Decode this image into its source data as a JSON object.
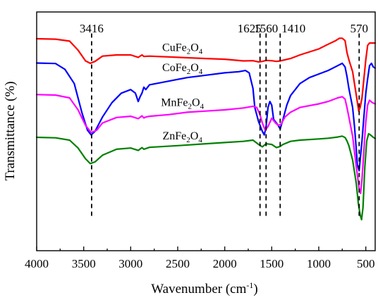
{
  "chart_data": {
    "type": "line",
    "title": "",
    "xlabel": "Wavenumber",
    "xlabel_unit": "cm",
    "xlabel_unit_exp": "-1",
    "ylabel": "Transmittance (%)",
    "xlim": [
      4000,
      400
    ],
    "x_reversed": true,
    "ylim": [
      0,
      100
    ],
    "x_ticks": [
      4000,
      3500,
      3000,
      2500,
      2000,
      1500,
      1000,
      500
    ],
    "x_tick_labels": [
      "4000",
      "3500",
      "3000",
      "2500",
      "2000",
      "1500",
      "1000",
      "500"
    ],
    "grid": false,
    "legend": "none (series labeled inline above each trace)",
    "peaks": [
      {
        "label": "3416",
        "x": 3416
      },
      {
        "label": "1625",
        "x": 1625
      },
      {
        "label": "1560",
        "x": 1560
      },
      {
        "label": "1410",
        "x": 1410
      },
      {
        "label": "570",
        "x": 570
      }
    ],
    "series": [
      {
        "name": "CuFe2O4",
        "color": "#ff0000",
        "label_base": "CuFe",
        "label_sub1": "2",
        "label_mid": "O",
        "label_sub2": "4",
        "x": [
          4000,
          3800,
          3650,
          3560,
          3480,
          3430,
          3380,
          3300,
          3150,
          3000,
          2920,
          2880,
          2860,
          2800,
          2500,
          2200,
          2000,
          1800,
          1700,
          1640,
          1600,
          1560,
          1500,
          1450,
          1410,
          1300,
          1200,
          1000,
          900,
          820,
          780,
          750,
          720,
          700,
          680,
          640,
          600,
          575,
          560,
          540,
          520,
          500,
          480,
          460,
          430,
          400
        ],
        "y": [
          88.8,
          88.6,
          87.8,
          84,
          79.5,
          78.5,
          79.3,
          81.5,
          82,
          82,
          81,
          82,
          81.4,
          81.5,
          81,
          80.5,
          80.2,
          79.5,
          79.6,
          79.1,
          79.3,
          79.7,
          79.6,
          79.3,
          79.5,
          80.5,
          82,
          84.5,
          86.5,
          88,
          89,
          89,
          88,
          83,
          80,
          75,
          65,
          58.5,
          60,
          64,
          72,
          80,
          86,
          87,
          87,
          87
        ]
      },
      {
        "name": "CoFe2O4",
        "color": "#0000ff",
        "label_base": "CoFe",
        "label_sub1": "2",
        "label_mid": "O",
        "label_sub2": "4",
        "x": [
          4000,
          3800,
          3700,
          3600,
          3520,
          3460,
          3420,
          3380,
          3300,
          3200,
          3100,
          3000,
          2950,
          2920,
          2900,
          2880,
          2860,
          2840,
          2800,
          2600,
          2400,
          2200,
          2000,
          1850,
          1780,
          1740,
          1700,
          1680,
          1640,
          1600,
          1580,
          1560,
          1540,
          1520,
          1500,
          1480,
          1440,
          1410,
          1380,
          1340,
          1300,
          1200,
          1100,
          1000,
          900,
          800,
          750,
          720,
          700,
          680,
          640,
          620,
          600,
          590,
          570,
          560,
          540,
          520,
          500,
          480,
          460,
          440,
          420,
          400
        ],
        "y": [
          78.6,
          78.4,
          76,
          70,
          58,
          50.5,
          48.5,
          50,
          56,
          62,
          66,
          67.5,
          66,
          62.5,
          64.5,
          66,
          68.5,
          67.5,
          69.5,
          71,
          72.5,
          73.5,
          74.5,
          75,
          75.5,
          74.5,
          68,
          60,
          54,
          50,
          48.5,
          52,
          60,
          62.5,
          61,
          55,
          53,
          51,
          55,
          61,
          65,
          70,
          72.5,
          74,
          75.5,
          77.5,
          78.5,
          77,
          73,
          68,
          60,
          52,
          42,
          36,
          33.5,
          38,
          46,
          56,
          66,
          72,
          77.5,
          78.5,
          77,
          76.5
        ]
      },
      {
        "name": "MnFe2O4",
        "color": "#ff00ff",
        "label_base": "MnFe",
        "label_sub1": "2",
        "label_mid": "O",
        "label_sub2": "4",
        "x": [
          4000,
          3800,
          3650,
          3560,
          3480,
          3420,
          3360,
          3300,
          3150,
          3000,
          2920,
          2880,
          2860,
          2840,
          2800,
          2600,
          2400,
          2200,
          2000,
          1800,
          1700,
          1660,
          1625,
          1600,
          1570,
          1540,
          1500,
          1460,
          1430,
          1400,
          1360,
          1300,
          1200,
          1000,
          900,
          800,
          750,
          720,
          700,
          680,
          640,
          600,
          570,
          555,
          540,
          520,
          500,
          480,
          460,
          430,
          400
        ],
        "y": [
          65.4,
          65.2,
          64,
          59,
          52.5,
          49.5,
          50.5,
          53.5,
          55.8,
          56.3,
          55.3,
          56.5,
          55.6,
          56,
          56.3,
          57,
          58,
          58.5,
          59,
          59.8,
          60.5,
          60,
          57,
          53.5,
          50.5,
          52,
          55.5,
          53.5,
          52.5,
          53,
          56,
          58,
          60,
          61.5,
          62.5,
          64,
          64.5,
          63.5,
          60,
          56,
          48,
          35,
          26,
          24,
          30,
          42,
          54,
          61,
          63,
          62,
          61.5
        ]
      },
      {
        "name": "ZnFe2O4",
        "color": "#008000",
        "label_base": "ZnFe",
        "label_sub1": "2",
        "label_mid": "O",
        "label_sub2": "4",
        "x": [
          4000,
          3800,
          3650,
          3560,
          3480,
          3430,
          3380,
          3300,
          3150,
          3000,
          2920,
          2880,
          2860,
          2800,
          2500,
          2200,
          2000,
          1800,
          1700,
          1640,
          1600,
          1560,
          1500,
          1450,
          1410,
          1380,
          1300,
          1200,
          1000,
          900,
          800,
          750,
          720,
          700,
          680,
          640,
          600,
          580,
          560,
          545,
          530,
          510,
          490,
          470,
          450,
          420,
          400
        ],
        "y": [
          47.5,
          47.3,
          46.3,
          43,
          38.5,
          36.5,
          37.2,
          40,
          42.5,
          43,
          42,
          43.2,
          42.5,
          43.3,
          44,
          44.8,
          45.3,
          45.8,
          46.3,
          44.5,
          43.5,
          44.8,
          44.5,
          43.2,
          43.7,
          44.5,
          45.8,
          46.3,
          46.8,
          47.1,
          47.6,
          48,
          47.4,
          46,
          44,
          38,
          28,
          20,
          15,
          13,
          18,
          35,
          46,
          49,
          48.5,
          47.5,
          47
        ]
      }
    ]
  }
}
